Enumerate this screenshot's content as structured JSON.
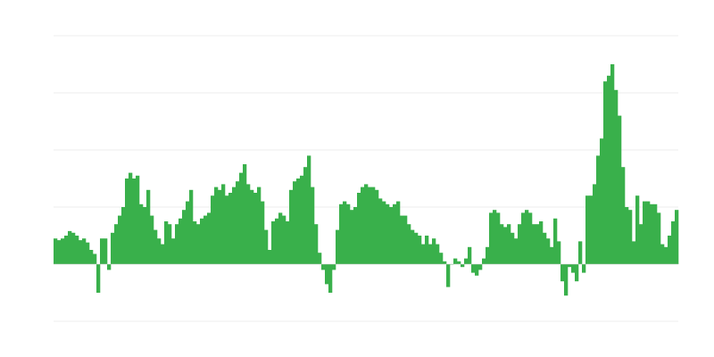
{
  "chart_data": {
    "type": "bar",
    "title": "",
    "xlabel": "",
    "ylabel": "",
    "ylim": [
      -1,
      4
    ],
    "grid": true,
    "gridlines": [
      -1,
      0,
      1,
      2,
      3,
      4
    ],
    "colors": {
      "bar": "#39b04b",
      "grid": "#eeeeee",
      "baseline": "#cccccc"
    },
    "values": [
      0.45,
      0.42,
      0.45,
      0.5,
      0.58,
      0.55,
      0.5,
      0.42,
      0.45,
      0.38,
      0.25,
      0.18,
      -0.5,
      0.45,
      0.45,
      -0.1,
      0.55,
      0.7,
      0.85,
      1.0,
      1.5,
      1.6,
      1.5,
      1.55,
      1.05,
      1.0,
      1.3,
      0.85,
      0.6,
      0.45,
      0.35,
      0.75,
      0.7,
      0.45,
      0.7,
      0.8,
      0.95,
      1.1,
      1.3,
      0.75,
      0.7,
      0.8,
      0.85,
      0.9,
      1.2,
      1.35,
      1.3,
      1.4,
      1.2,
      1.25,
      1.35,
      1.45,
      1.6,
      1.75,
      1.4,
      1.3,
      1.25,
      1.35,
      1.1,
      0.6,
      0.25,
      0.75,
      0.8,
      0.9,
      0.85,
      0.75,
      1.3,
      1.45,
      1.5,
      1.55,
      1.7,
      1.9,
      1.35,
      0.7,
      0.2,
      -0.1,
      -0.35,
      -0.5,
      -0.1,
      0.6,
      1.05,
      1.1,
      1.05,
      0.95,
      1.0,
      1.25,
      1.35,
      1.4,
      1.35,
      1.35,
      1.3,
      1.15,
      1.1,
      1.05,
      1.0,
      1.05,
      1.1,
      0.85,
      0.85,
      0.7,
      0.6,
      0.55,
      0.5,
      0.35,
      0.5,
      0.35,
      0.45,
      0.35,
      0.2,
      0.05,
      -0.4,
      0.0,
      0.1,
      0.05,
      -0.05,
      0.1,
      0.3,
      -0.15,
      -0.2,
      -0.1,
      0.1,
      0.3,
      0.9,
      0.95,
      0.9,
      0.7,
      0.65,
      0.7,
      0.55,
      0.45,
      0.7,
      0.9,
      0.95,
      0.9,
      0.7,
      0.7,
      0.75,
      0.55,
      0.45,
      0.3,
      0.8,
      0.4,
      -0.3,
      -0.55,
      -0.05,
      -0.15,
      -0.3,
      0.4,
      -0.15,
      1.2,
      1.2,
      1.4,
      1.9,
      2.2,
      3.2,
      3.3,
      3.5,
      3.05,
      2.6,
      1.7,
      1.0,
      0.95,
      0.4,
      1.2,
      0.7,
      1.1,
      1.1,
      1.05,
      1.05,
      0.9,
      0.35,
      0.3,
      0.5,
      0.75,
      0.95
    ]
  }
}
